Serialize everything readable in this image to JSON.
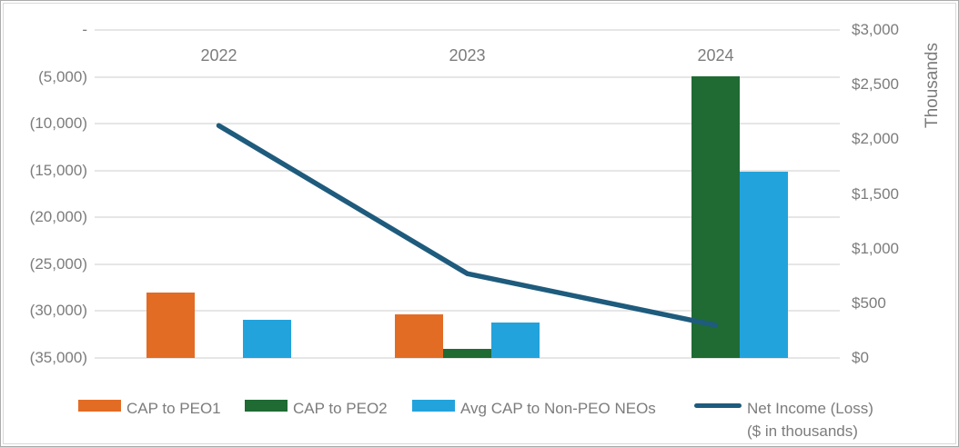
{
  "chart_data": {
    "type": "bar+line",
    "categories": [
      "2022",
      "2023",
      "2024"
    ],
    "bar_series": [
      {
        "name": "CAP to PEO1",
        "color": "#e36c25",
        "axis": "right",
        "values": [
          595,
          400,
          null
        ]
      },
      {
        "name": "CAP to PEO2",
        "color": "#1f6b33",
        "axis": "right",
        "values": [
          null,
          85,
          2580
        ]
      },
      {
        "name": "Avg CAP to Non-PEO NEOs",
        "color": "#23a3dc",
        "axis": "right",
        "values": [
          345,
          320,
          1705
        ]
      }
    ],
    "line_series": {
      "name": "Net Income (Loss) ($ in thousands)",
      "color": "#1e5b7d",
      "axis": "left",
      "values": [
        -10200,
        -26000,
        -31500
      ]
    },
    "left_axis": {
      "min": -35000,
      "max": 0,
      "tick_values": [
        0,
        -5000,
        -10000,
        -15000,
        -20000,
        -25000,
        -30000,
        -35000
      ],
      "tick_labels": [
        "-",
        "(5,000)",
        "(10,000)",
        "(15,000)",
        "(20,000)",
        "(25,000)",
        "(30,000)",
        "(35,000)"
      ]
    },
    "right_axis": {
      "min": 0,
      "max": 3000,
      "tick_values": [
        3000,
        2500,
        2000,
        1500,
        1000,
        500,
        0
      ],
      "tick_labels": [
        "$3,000",
        "$2,500",
        "$2,000",
        "$1,500",
        "$1,000",
        "$500",
        "$0"
      ],
      "unit_label": "Thousands"
    },
    "grid": true,
    "legend_position": "bottom"
  },
  "legend": {
    "items": [
      {
        "label": "CAP to PEO1",
        "type": "bar",
        "color": "#e36c25"
      },
      {
        "label": "CAP to PEO2",
        "type": "bar",
        "color": "#1f6b33"
      },
      {
        "label": "Avg CAP to Non-PEO NEOs",
        "type": "bar",
        "color": "#23a3dc"
      },
      {
        "label": "Net Income (Loss)",
        "label_line2": "($ in thousands)",
        "type": "line",
        "color": "#1e5b7d"
      }
    ]
  },
  "colors": {
    "text_gray": "#7c7c7c",
    "gridline": "#e6e6e6",
    "background": "#ffffff"
  }
}
